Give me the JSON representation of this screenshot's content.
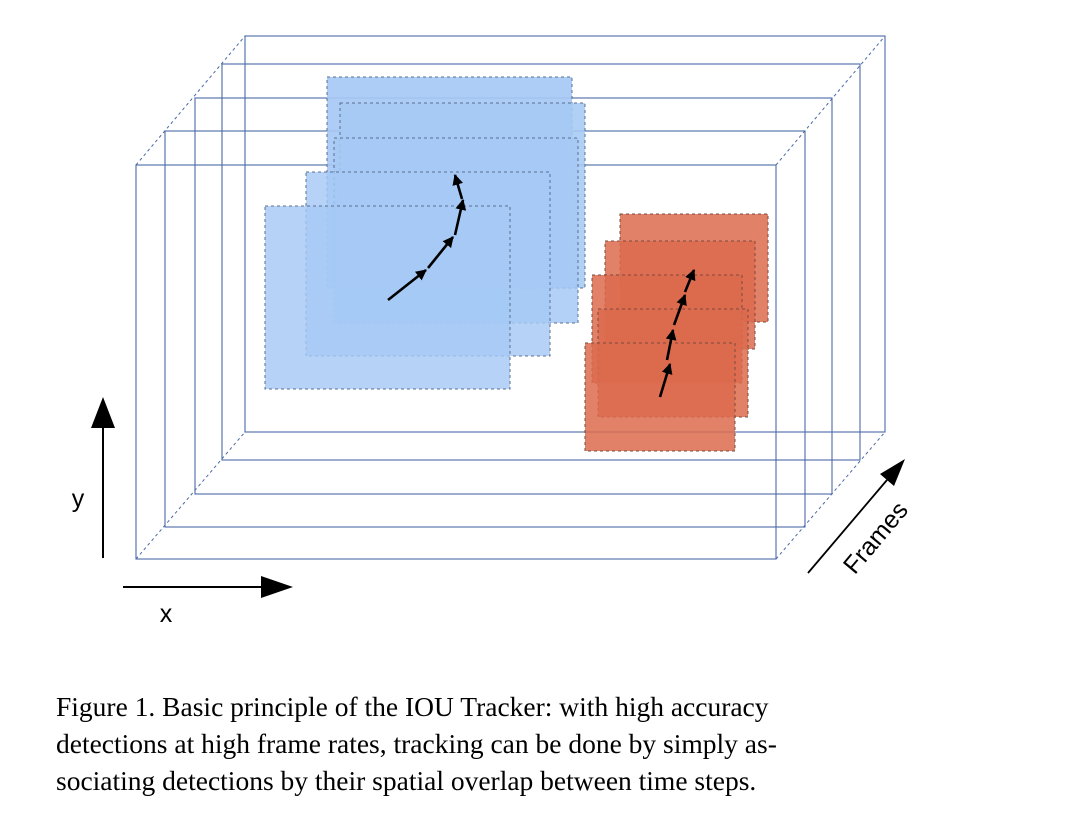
{
  "figure": {
    "axes": {
      "x_label": "x",
      "y_label": "y",
      "frames_label": "Frames"
    },
    "frame_count": 5,
    "tracks": [
      {
        "name": "blue",
        "color": "#a4c8f4",
        "edge": "#5a6f8f",
        "detections": 5
      },
      {
        "name": "red",
        "color": "#dc6a4c",
        "edge": "#7a4a40",
        "detections": 5
      }
    ],
    "frame_line_color": "#4a6aa8"
  },
  "caption": {
    "lines": [
      "Figure 1. Basic principle of the IOU Tracker: with high accuracy",
      "detections at high frame rates, tracking can be done by simply as-",
      "sociating detections by their spatial overlap between time steps."
    ]
  }
}
